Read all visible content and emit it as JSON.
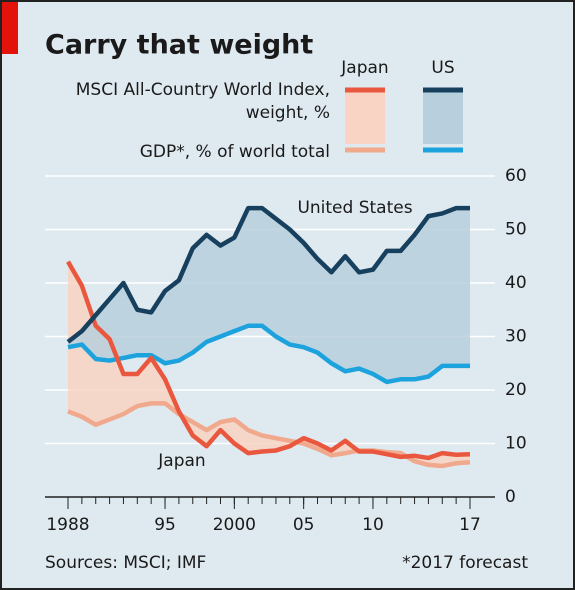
{
  "chart_data": {
    "type": "line",
    "title": "Carry that weight",
    "legend": {
      "columns": [
        "Japan",
        "US"
      ],
      "rows": [
        [
          "MSCI All-Country World Index,",
          "weight, %"
        ],
        [
          "GDP*, % of world total"
        ]
      ]
    },
    "x": [
      1988,
      1989,
      1990,
      1991,
      1992,
      1993,
      1994,
      1995,
      1996,
      1997,
      1998,
      1999,
      2000,
      2001,
      2002,
      2003,
      2004,
      2005,
      2006,
      2007,
      2008,
      2009,
      2010,
      2011,
      2012,
      2013,
      2014,
      2015,
      2016,
      2017
    ],
    "xlim": [
      1988,
      2017
    ],
    "xticks": [
      {
        "value": 1988,
        "label": "1988"
      },
      {
        "value": 1995,
        "label": "95"
      },
      {
        "value": 2000,
        "label": "2000"
      },
      {
        "value": 2005,
        "label": "05"
      },
      {
        "value": 2010,
        "label": "10"
      },
      {
        "value": 2017,
        "label": "17"
      }
    ],
    "ylim": [
      0,
      60
    ],
    "yticks": [
      0,
      10,
      20,
      30,
      40,
      50,
      60
    ],
    "grid": true,
    "series": [
      {
        "color": "#e9573e",
        "values": [
          44,
          39.5,
          32,
          29.5,
          23,
          23,
          26,
          22,
          16,
          11.5,
          9.5,
          12.5,
          10,
          8.2,
          8.5,
          8.7,
          9.5,
          11,
          10,
          8.7,
          10.5,
          8.5,
          8.5,
          8,
          7.5,
          7.7,
          7.3,
          8.2,
          7.9,
          8
        ]
      },
      {
        "color": "#17405e",
        "values": [
          29,
          31,
          34,
          37,
          40,
          35,
          34.5,
          38.5,
          40.5,
          46.5,
          49,
          47,
          48.5,
          54,
          54,
          52,
          50,
          47.5,
          44.5,
          42,
          45,
          42,
          42.5,
          46,
          46,
          49,
          52.5,
          53,
          54,
          54
        ]
      },
      {
        "color": "#f0a98d",
        "values": [
          16,
          15,
          13.5,
          14.5,
          15.5,
          17,
          17.5,
          17.5,
          15.5,
          14,
          12.5,
          14,
          14.5,
          12.5,
          11.5,
          11,
          10.5,
          10,
          9,
          7.8,
          8.2,
          8.7,
          8.7,
          8.4,
          8.2,
          6.7,
          6,
          5.8,
          6.3,
          6.5
        ]
      },
      {
        "color": "#1ca3dd",
        "values": [
          28,
          28.5,
          25.8,
          25.5,
          26,
          26.5,
          26.5,
          25,
          25.5,
          27,
          29,
          30,
          31,
          32,
          32,
          30,
          28.5,
          28,
          27,
          25,
          23.5,
          24,
          23,
          21.5,
          22,
          22,
          22.5,
          24.5,
          24.5,
          24.5
        ]
      }
    ],
    "area_colors": [
      "#f9d3c3",
      "#b8cfdd"
    ],
    "annotations": [
      "United States",
      "Japan"
    ],
    "source": "Sources: MSCI; IMF",
    "footnote": "*2017 forecast"
  }
}
